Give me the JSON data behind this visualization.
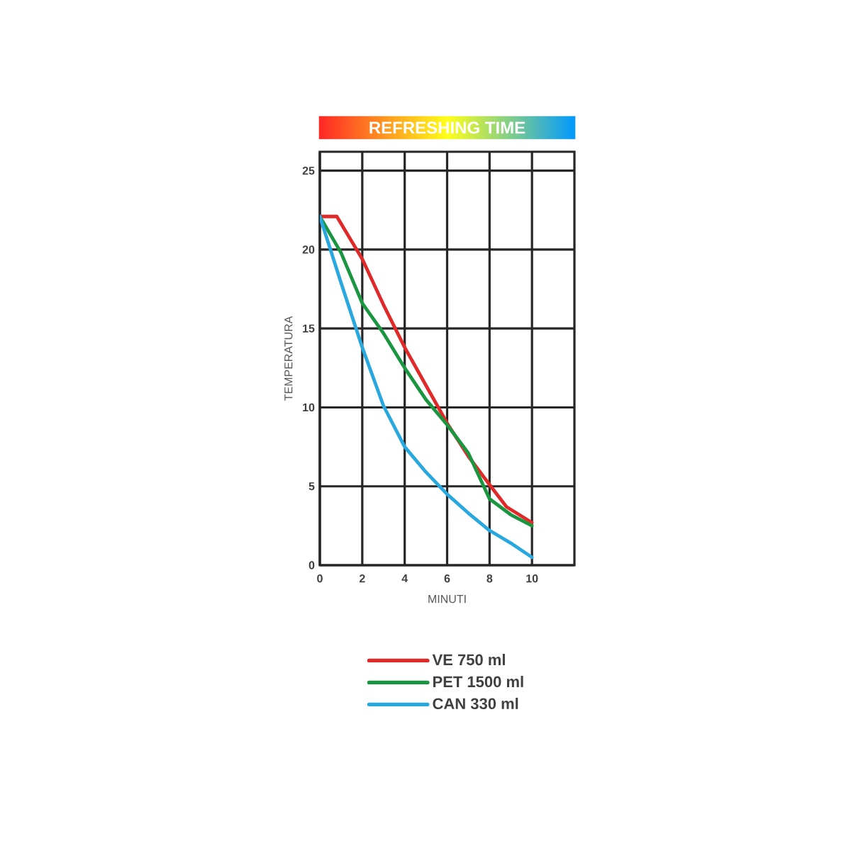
{
  "chart_data": {
    "type": "line",
    "title": "REFRESHING TIME",
    "xlabel": "MINUTI",
    "ylabel": "TEMPERATURA",
    "xlim": [
      0,
      12
    ],
    "ylim": [
      0,
      26.2
    ],
    "xticks": [
      0,
      2,
      4,
      6,
      8,
      10
    ],
    "annotations": [
      "0"
    ],
    "yticks": [
      0,
      5,
      10,
      15,
      20,
      25
    ],
    "grid": true,
    "legend": "bottom",
    "marker": "none",
    "line_style": "solid",
    "series": [
      {
        "name": "VE  750 ml",
        "color": "#e02a2a",
        "x": [
          0,
          0.8,
          2,
          3,
          4,
          5,
          6,
          7,
          8,
          8.8,
          10
        ],
        "values": [
          22.1,
          22.1,
          19.4,
          16.5,
          13.8,
          11.4,
          9.0,
          6.9,
          5.1,
          3.7,
          2.7
        ]
      },
      {
        "name": "PET 1500 ml",
        "color": "#1a9641",
        "x": [
          0,
          1,
          2,
          3,
          4,
          5,
          6,
          7,
          8,
          9,
          10
        ],
        "values": [
          22.1,
          19.8,
          16.6,
          14.7,
          12.5,
          10.5,
          8.9,
          7.1,
          4.2,
          3.2,
          2.5
        ]
      },
      {
        "name": "CAN 330 ml",
        "color": "#29a8e0",
        "x": [
          0,
          1,
          2,
          3,
          4,
          5,
          6,
          7,
          8,
          9,
          10
        ],
        "values": [
          22.1,
          17.9,
          13.8,
          10.1,
          7.5,
          5.9,
          4.5,
          3.3,
          2.2,
          1.4,
          0.5
        ]
      }
    ]
  }
}
